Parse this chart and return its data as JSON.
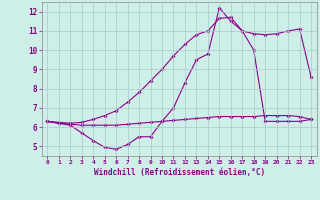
{
  "line1_x": [
    0,
    1,
    2,
    3,
    4,
    5,
    6,
    7,
    8,
    9,
    10,
    11,
    12,
    13,
    14,
    15,
    16,
    17,
    18,
    19,
    20,
    21,
    22,
    23
  ],
  "line1_y": [
    6.3,
    6.2,
    6.1,
    5.7,
    5.3,
    4.95,
    4.85,
    5.1,
    5.5,
    5.5,
    6.3,
    7.0,
    8.3,
    9.5,
    9.8,
    12.2,
    11.5,
    11.0,
    10.0,
    6.3,
    6.3,
    6.3,
    6.3,
    6.4
  ],
  "line2_x": [
    0,
    2,
    3,
    4,
    5,
    6,
    7,
    8,
    9,
    10,
    11,
    12,
    13,
    14,
    15,
    16,
    17,
    18,
    19,
    20,
    21,
    22,
    23
  ],
  "line2_y": [
    6.3,
    6.2,
    6.25,
    6.4,
    6.6,
    6.85,
    7.3,
    7.8,
    8.4,
    9.0,
    9.7,
    10.3,
    10.8,
    11.0,
    11.65,
    11.7,
    11.0,
    10.85,
    10.8,
    10.85,
    11.0,
    11.1,
    8.6
  ],
  "line3_x": [
    0,
    1,
    2,
    3,
    4,
    5,
    6,
    7,
    8,
    9,
    10,
    11,
    12,
    13,
    14,
    15,
    16,
    17,
    18,
    19,
    20,
    21,
    22,
    23
  ],
  "line3_y": [
    6.3,
    6.2,
    6.15,
    6.1,
    6.1,
    6.1,
    6.1,
    6.15,
    6.2,
    6.25,
    6.3,
    6.35,
    6.4,
    6.45,
    6.5,
    6.55,
    6.55,
    6.55,
    6.55,
    6.6,
    6.6,
    6.6,
    6.55,
    6.4
  ],
  "color": "#8b008b",
  "bg_color": "#ceeee8",
  "grid_color": "#aacaca",
  "xlabel": "Windchill (Refroidissement éolien,°C)",
  "xlim": [
    -0.5,
    23.5
  ],
  "ylim": [
    4.5,
    12.5
  ],
  "yticks": [
    5,
    6,
    7,
    8,
    9,
    10,
    11,
    12
  ],
  "xticks": [
    0,
    1,
    2,
    3,
    4,
    5,
    6,
    7,
    8,
    9,
    10,
    11,
    12,
    13,
    14,
    15,
    16,
    17,
    18,
    19,
    20,
    21,
    22,
    23
  ],
  "marker": "D",
  "markersize": 2,
  "linewidth": 0.8
}
